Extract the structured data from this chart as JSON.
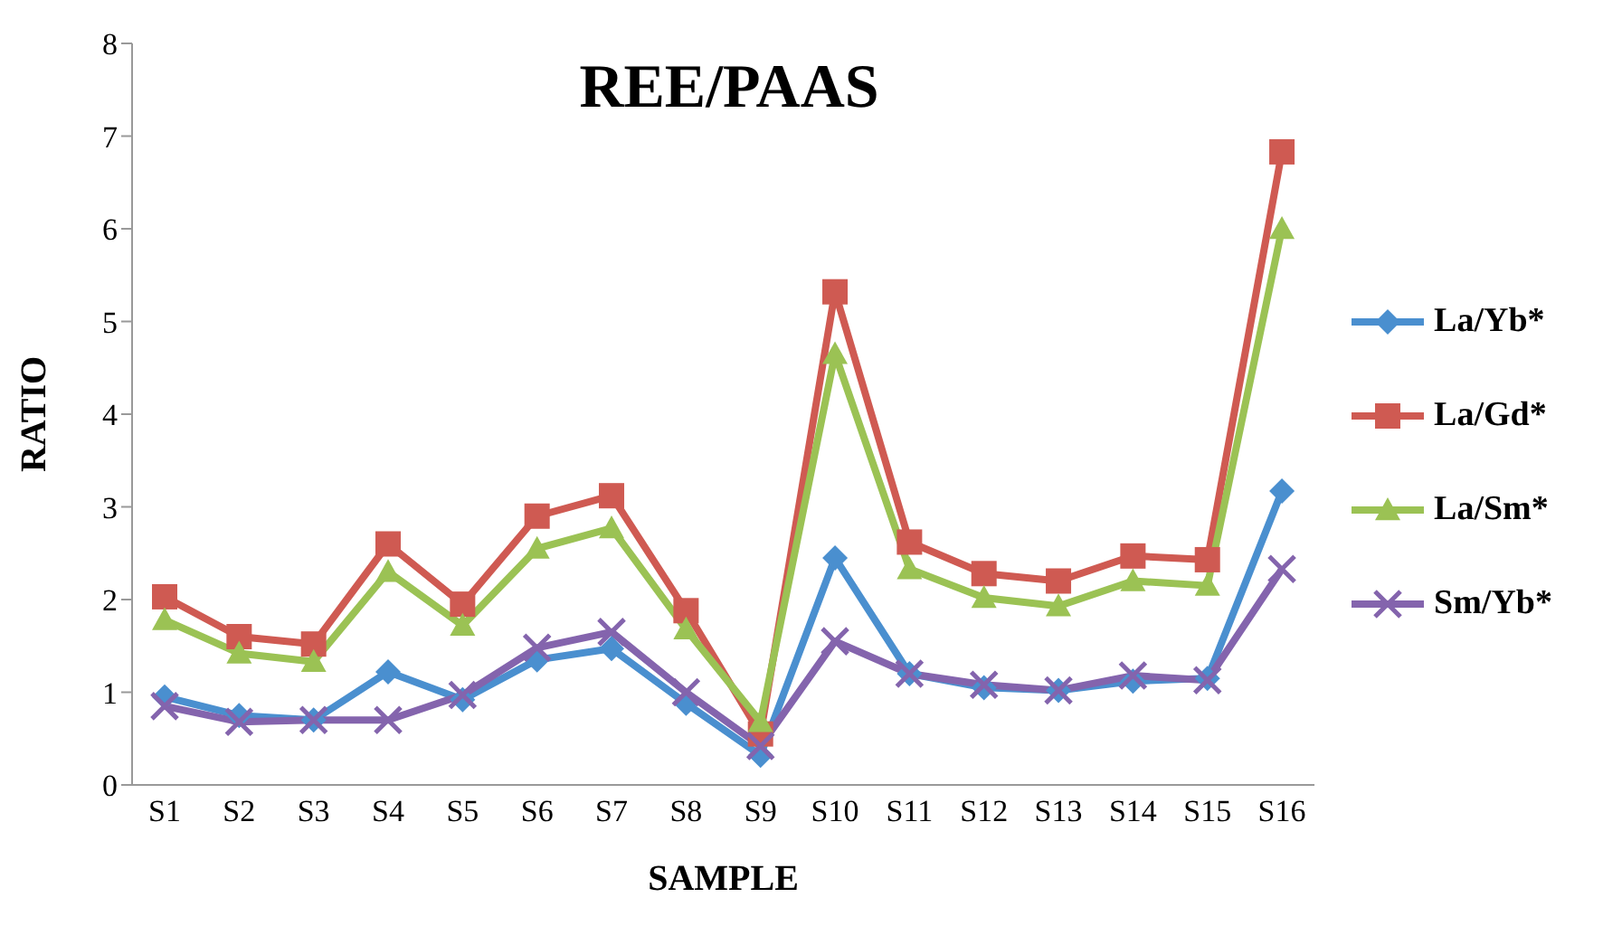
{
  "chart_data": {
    "type": "line",
    "title": "REE/PAAS",
    "xlabel": "SAMPLE",
    "ylabel": "RATIO",
    "categories": [
      "S1",
      "S2",
      "S3",
      "S4",
      "S5",
      "S6",
      "S7",
      "S8",
      "S9",
      "S10",
      "S11",
      "S12",
      "S13",
      "S14",
      "S15",
      "S16"
    ],
    "series": [
      {
        "name": "La/Yb*",
        "color": "#4a8fcf",
        "marker": "diamond",
        "values": [
          0.95,
          0.75,
          0.7,
          1.22,
          0.92,
          1.35,
          1.47,
          0.88,
          0.32,
          2.45,
          1.2,
          1.05,
          1.02,
          1.12,
          1.15,
          3.17
        ]
      },
      {
        "name": "La/Gd*",
        "color": "#cf5a52",
        "marker": "square",
        "values": [
          2.03,
          1.6,
          1.52,
          2.6,
          1.95,
          2.9,
          3.12,
          1.88,
          0.55,
          5.32,
          2.62,
          2.28,
          2.2,
          2.47,
          2.43,
          6.83
        ]
      },
      {
        "name": "La/Sm*",
        "color": "#9bc254",
        "marker": "triangle",
        "values": [
          1.78,
          1.42,
          1.33,
          2.3,
          1.72,
          2.55,
          2.77,
          1.68,
          0.68,
          4.65,
          2.33,
          2.02,
          1.93,
          2.2,
          2.15,
          6.0
        ]
      },
      {
        "name": "Sm/Yb*",
        "color": "#8464ad",
        "marker": "cross",
        "values": [
          0.85,
          0.68,
          0.7,
          0.7,
          0.97,
          1.48,
          1.65,
          1.0,
          0.42,
          1.55,
          1.2,
          1.08,
          1.02,
          1.18,
          1.13,
          2.33
        ]
      }
    ],
    "ylim": [
      0,
      8
    ],
    "yticks": [
      0,
      1,
      2,
      3,
      4,
      5,
      6,
      7,
      8
    ],
    "grid": false,
    "legend": "right",
    "line_style": "solid"
  }
}
